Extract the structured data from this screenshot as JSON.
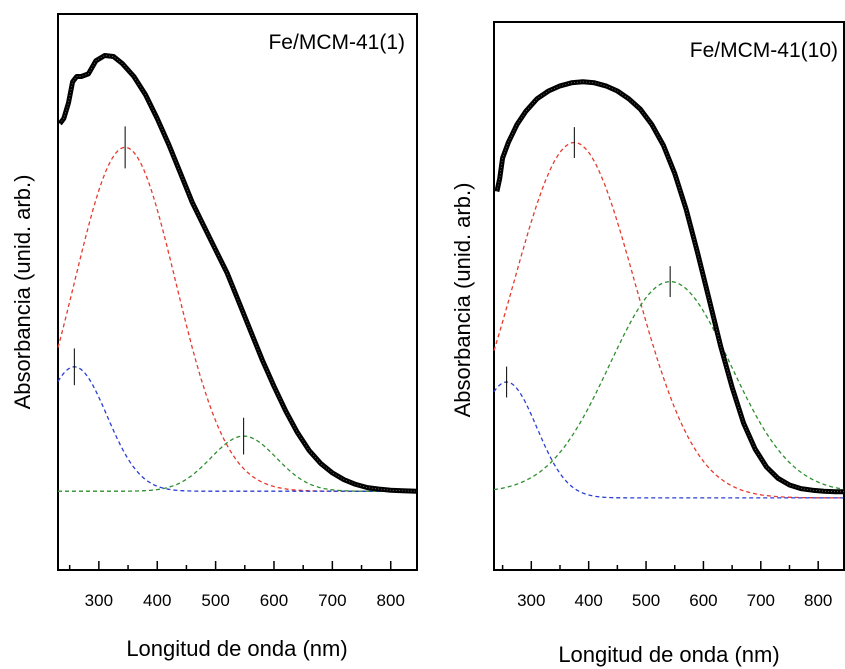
{
  "chart_data": [
    {
      "type": "line",
      "title": "Fe/MCM-41(1)",
      "xlabel": "Longitud de onda (nm)",
      "ylabel": "Absorbancia (unid. arb.)",
      "xlim": [
        230,
        845
      ],
      "ylim": [
        0,
        1
      ],
      "xticks": [
        300,
        400,
        500,
        600,
        700,
        800
      ],
      "yaxis_ticklabels": false,
      "grid": false,
      "series": [
        {
          "role": "experimental",
          "color": "#000000",
          "style": "thick-solid",
          "points": [
            [
              233,
              0.85
            ],
            [
              240,
              0.86
            ],
            [
              248,
              0.89
            ],
            [
              255,
              0.93
            ],
            [
              262,
              0.94
            ],
            [
              270,
              0.94
            ],
            [
              282,
              0.945
            ],
            [
              295,
              0.97
            ],
            [
              310,
              0.98
            ],
            [
              325,
              0.978
            ],
            [
              340,
              0.965
            ],
            [
              360,
              0.94
            ],
            [
              380,
              0.905
            ],
            [
              400,
              0.86
            ],
            [
              420,
              0.81
            ],
            [
              440,
              0.755
            ],
            [
              460,
              0.7
            ],
            [
              480,
              0.655
            ],
            [
              500,
              0.61
            ],
            [
              520,
              0.565
            ],
            [
              540,
              0.51
            ],
            [
              560,
              0.455
            ],
            [
              580,
              0.4
            ],
            [
              600,
              0.35
            ],
            [
              620,
              0.303
            ],
            [
              640,
              0.262
            ],
            [
              660,
              0.228
            ],
            [
              680,
              0.203
            ],
            [
              700,
              0.185
            ],
            [
              720,
              0.172
            ],
            [
              740,
              0.163
            ],
            [
              760,
              0.157
            ],
            [
              780,
              0.154
            ],
            [
              800,
              0.152
            ],
            [
              820,
              0.151
            ],
            [
              845,
              0.15
            ]
          ]
        },
        {
          "role": "gaussian-component",
          "color": "#e63b2e",
          "style": "dashed",
          "center": 345,
          "amplitude": 0.655,
          "width": 132,
          "baseline": 0.15,
          "marker_height": 0.08
        },
        {
          "role": "gaussian-component",
          "color": "#2b3fd6",
          "style": "dashed",
          "center": 258,
          "amplitude": 0.237,
          "width": 85,
          "baseline": 0.15,
          "marker_height": 0.07
        },
        {
          "role": "gaussian-component",
          "color": "#2f8f2f",
          "style": "dashed",
          "center": 548,
          "amplitude": 0.105,
          "width": 85,
          "baseline": 0.15,
          "marker_height": 0.07
        }
      ]
    },
    {
      "type": "line",
      "title": "Fe/MCM-41(10)",
      "xlabel": "Longitud de onda (nm)",
      "ylabel": "Absorbancia (unid. arb.)",
      "xlim": [
        235,
        845
      ],
      "ylim": [
        0,
        1
      ],
      "xticks": [
        300,
        400,
        500,
        600,
        700,
        800
      ],
      "yaxis_ticklabels": false,
      "grid": false,
      "series": [
        {
          "role": "experimental",
          "color": "#000000",
          "style": "thick-solid",
          "points": [
            [
              240,
              0.735
            ],
            [
              245,
              0.76
            ],
            [
              250,
              0.8
            ],
            [
              260,
              0.83
            ],
            [
              275,
              0.865
            ],
            [
              290,
              0.89
            ],
            [
              310,
              0.915
            ],
            [
              330,
              0.93
            ],
            [
              350,
              0.94
            ],
            [
              370,
              0.946
            ],
            [
              390,
              0.948
            ],
            [
              410,
              0.946
            ],
            [
              430,
              0.94
            ],
            [
              450,
              0.93
            ],
            [
              470,
              0.915
            ],
            [
              490,
              0.895
            ],
            [
              510,
              0.865
            ],
            [
              530,
              0.825
            ],
            [
              550,
              0.77
            ],
            [
              570,
              0.7
            ],
            [
              590,
              0.615
            ],
            [
              610,
              0.525
            ],
            [
              630,
              0.435
            ],
            [
              650,
              0.355
            ],
            [
              670,
              0.285
            ],
            [
              690,
              0.235
            ],
            [
              710,
              0.2
            ],
            [
              730,
              0.178
            ],
            [
              750,
              0.165
            ],
            [
              770,
              0.158
            ],
            [
              790,
              0.155
            ],
            [
              810,
              0.153
            ],
            [
              830,
              0.152
            ],
            [
              845,
              0.152
            ]
          ]
        },
        {
          "role": "gaussian-component",
          "color": "#e63b2e",
          "style": "dashed",
          "center": 375,
          "amplitude": 0.69,
          "width": 160,
          "baseline": 0.14,
          "marker_height": 0.06
        },
        {
          "role": "gaussian-component",
          "color": "#2b3fd6",
          "style": "dashed",
          "center": 257,
          "amplitude": 0.225,
          "width": 80,
          "baseline": 0.14,
          "marker_height": 0.06
        },
        {
          "role": "gaussian-component",
          "color": "#2f8f2f",
          "style": "dashed",
          "center": 542,
          "amplitude": 0.41,
          "width": 160,
          "baseline": 0.15,
          "marker_height": 0.06
        }
      ]
    }
  ]
}
